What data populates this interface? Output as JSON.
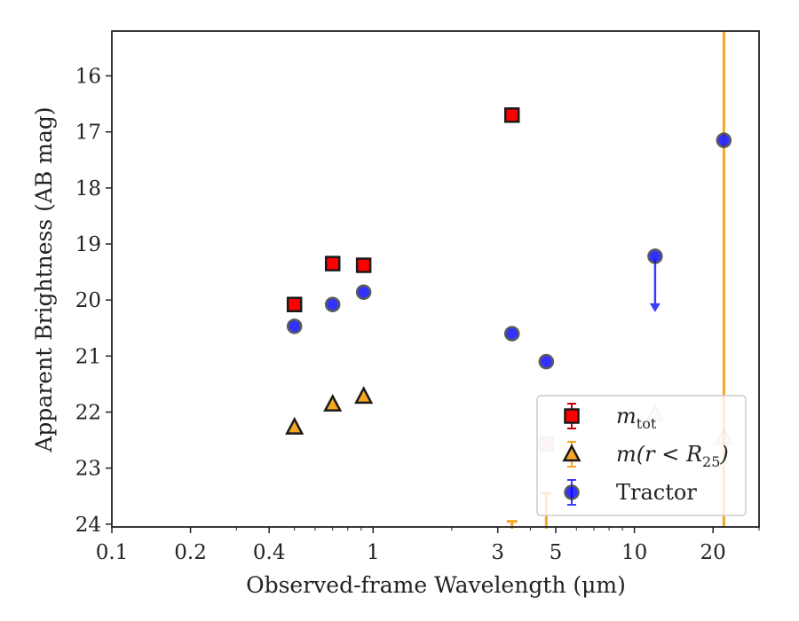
{
  "chart_data": {
    "type": "scatter",
    "title": "",
    "xlabel": "Observed-frame Wavelength (μm)",
    "ylabel": "Apparent Brightness (AB mag)",
    "xscale": "log",
    "xlim": [
      0.1,
      30
    ],
    "ylim": [
      24.05,
      15.2
    ],
    "y_inverted": true,
    "grid": false,
    "legend_position": "lower-right",
    "x_ticks": [
      {
        "value": 0.1,
        "label": "0.1"
      },
      {
        "value": 0.2,
        "label": "0.2"
      },
      {
        "value": 0.4,
        "label": "0.4"
      },
      {
        "value": 1,
        "label": "1"
      },
      {
        "value": 3,
        "label": "3"
      },
      {
        "value": 5,
        "label": "5"
      },
      {
        "value": 10,
        "label": "10"
      },
      {
        "value": 20,
        "label": "20"
      }
    ],
    "y_ticks": [
      {
        "value": 16,
        "label": "16"
      },
      {
        "value": 17,
        "label": "17"
      },
      {
        "value": 18,
        "label": "18"
      },
      {
        "value": 19,
        "label": "19"
      },
      {
        "value": 20,
        "label": "20"
      },
      {
        "value": 21,
        "label": "21"
      },
      {
        "value": 22,
        "label": "22"
      },
      {
        "value": 23,
        "label": "23"
      },
      {
        "value": 24,
        "label": "24"
      }
    ],
    "series": [
      {
        "name": "m_tot",
        "legend_label_main": "m",
        "legend_label_sub": "tot",
        "marker": "square",
        "color": "#ff0000",
        "edge_color": "#1a1a1a",
        "points": [
          {
            "x": 0.5,
            "y": 20.08
          },
          {
            "x": 0.7,
            "y": 19.35
          },
          {
            "x": 0.92,
            "y": 19.38
          },
          {
            "x": 3.4,
            "y": 16.7
          },
          {
            "x": 4.6,
            "y": 22.57,
            "faded": true
          }
        ]
      },
      {
        "name": "m(r < R25)",
        "legend_label_main": "m(r < R",
        "legend_label_sub": "25",
        "legend_label_end": ")",
        "marker": "triangle",
        "color": "#f5a623",
        "edge_color": "#1a1a1a",
        "points": [
          {
            "x": 0.5,
            "y": 22.27
          },
          {
            "x": 0.7,
            "y": 21.86
          },
          {
            "x": 0.92,
            "y": 21.72
          },
          {
            "x": 12.0,
            "y": 22.03,
            "faded": true
          },
          {
            "x": 22.0,
            "y": 22.45,
            "faded": true
          }
        ],
        "lower_limits": [
          {
            "x": 3.4,
            "y": 23.95
          },
          {
            "x": 4.6,
            "y": 23.45
          }
        ]
      },
      {
        "name": "Tractor",
        "legend_label_main": "Tractor",
        "marker": "circle",
        "color": "#0000ff",
        "edge_color": "#333333",
        "points": [
          {
            "x": 0.5,
            "y": 20.47
          },
          {
            "x": 0.7,
            "y": 20.08
          },
          {
            "x": 0.92,
            "y": 19.86
          },
          {
            "x": 3.4,
            "y": 20.6
          },
          {
            "x": 4.6,
            "y": 21.1
          },
          {
            "x": 12.0,
            "y": 19.22,
            "upper_limit_to": 20.2
          },
          {
            "x": 22.0,
            "y": 17.15
          }
        ]
      }
    ],
    "vertical_line": {
      "x": 22.0,
      "color": "#f5a623"
    }
  }
}
